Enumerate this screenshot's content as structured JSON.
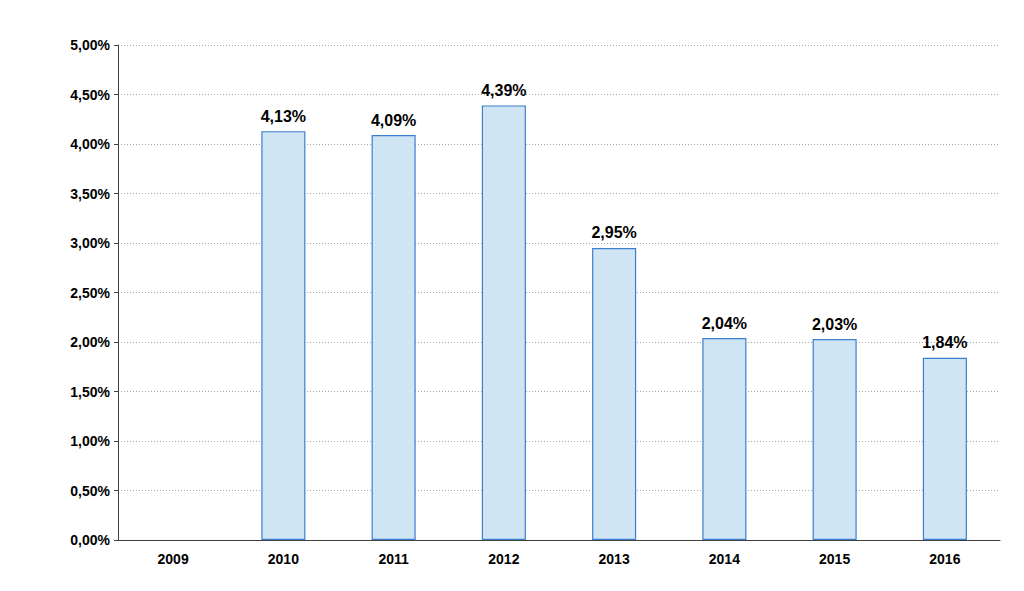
{
  "chart_data": {
    "type": "bar",
    "categories": [
      "2009",
      "2010",
      "2011",
      "2012",
      "2013",
      "2014",
      "2015",
      "2016"
    ],
    "values": [
      null,
      4.13,
      4.09,
      4.39,
      2.95,
      2.04,
      2.03,
      1.84
    ],
    "value_labels": [
      null,
      "4,13%",
      "4,09%",
      "4,39%",
      "2,95%",
      "2,04%",
      "2,03%",
      "1,84%"
    ],
    "color": "#cfe5f3",
    "ylim": [
      0,
      5
    ],
    "yticks": [
      {
        "value": 0,
        "label": "0,00%"
      },
      {
        "value": 0.5,
        "label": "0,50%"
      },
      {
        "value": 1,
        "label": "1,00%"
      },
      {
        "value": 1.5,
        "label": "1,50%"
      },
      {
        "value": 2,
        "label": "2,00%"
      },
      {
        "value": 2.5,
        "label": "2,50%"
      },
      {
        "value": 3,
        "label": "3,00%"
      },
      {
        "value": 3.5,
        "label": "3,50%"
      },
      {
        "value": 4,
        "label": "4,00%"
      },
      {
        "value": 4.5,
        "label": "4,50%"
      },
      {
        "value": 5,
        "label": "5,00%"
      }
    ],
    "grid": true,
    "data_labels": true
  }
}
